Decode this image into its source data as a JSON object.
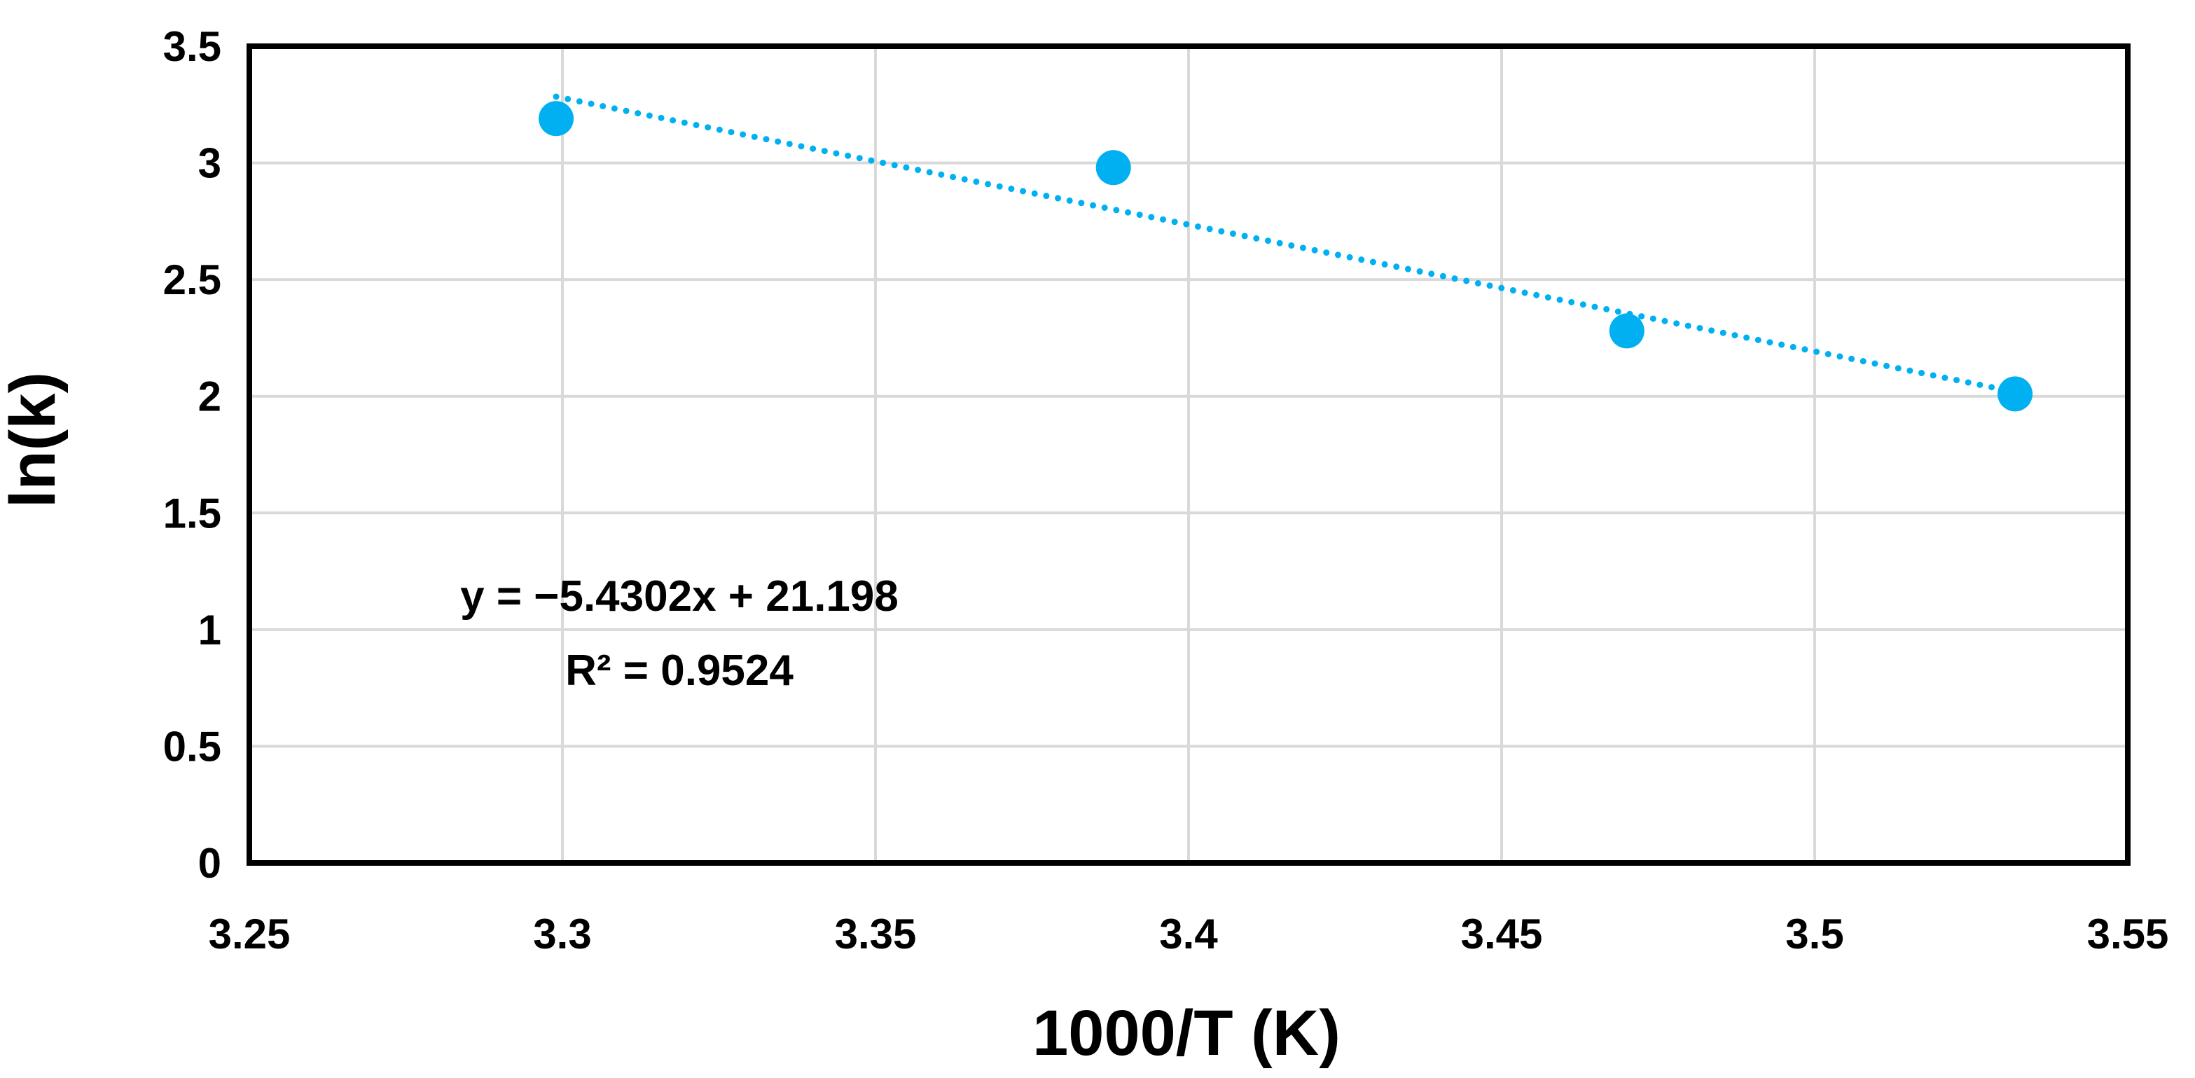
{
  "chart_data": {
    "type": "scatter",
    "title": "",
    "xlabel": "1000/T (K)",
    "ylabel": "ln(k)",
    "xlim": [
      3.25,
      3.55
    ],
    "ylim": [
      0,
      3.5
    ],
    "grid": true,
    "x_ticks": [
      "3.25",
      "3.3",
      "3.35",
      "3.4",
      "3.45",
      "3.5",
      "3.55"
    ],
    "y_ticks": [
      "0",
      "0.5",
      "1",
      "1.5",
      "2",
      "2.5",
      "3",
      "3.5"
    ],
    "series": [
      {
        "name": "ln(k)",
        "color": "#00b0f0",
        "x": [
          3.299,
          3.388,
          3.47,
          3.532
        ],
        "y": [
          3.19,
          2.98,
          2.28,
          2.01
        ]
      }
    ],
    "trendline": {
      "type": "linear",
      "style": "dotted",
      "color": "#00b0f0",
      "slope": -5.4302,
      "intercept": 21.198,
      "x_range": [
        3.299,
        3.532
      ],
      "equation_label": "y = −5.4302x + 21.198",
      "r2_label": "R² = 0.9524"
    }
  }
}
